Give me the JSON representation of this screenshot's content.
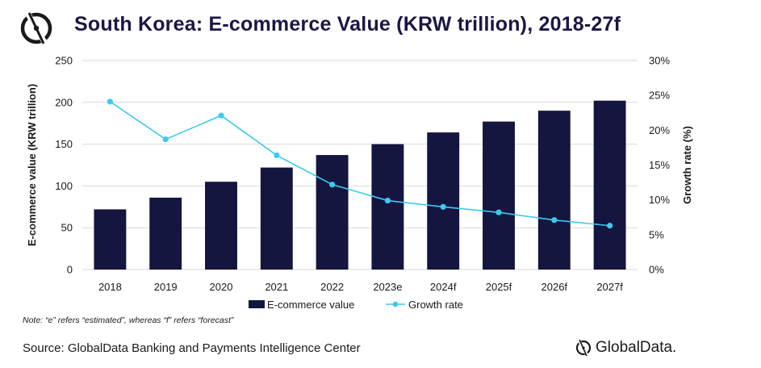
{
  "header": {
    "title": "South Korea: E-commerce Value (KRW trillion), 2018-27f",
    "logo_icon": "globaldata-logo-icon"
  },
  "colors": {
    "bar": "#14163f",
    "line": "#3ec9f0",
    "grid": "#d9d9d9",
    "title": "#1b1744"
  },
  "chart_data": {
    "type": "bar",
    "categories": [
      "2018",
      "2019",
      "2020",
      "2021",
      "2022",
      "2023e",
      "2024f",
      "2025f",
      "2026f",
      "2027f"
    ],
    "series": [
      {
        "name": "E-commerce value",
        "type": "bar",
        "axis": "left",
        "values": [
          72,
          86,
          105,
          122,
          137,
          150,
          164,
          177,
          190,
          202
        ]
      },
      {
        "name": "Growth rate",
        "type": "line",
        "axis": "right",
        "values": [
          24.1,
          18.7,
          22.1,
          16.4,
          12.2,
          9.9,
          9.0,
          8.2,
          7.1,
          6.3
        ]
      }
    ],
    "ylabel": "E-commerce value (KRW trillion)",
    "ylim": [
      0,
      250
    ],
    "yticks": [
      "0",
      "50",
      "100",
      "150",
      "200",
      "250"
    ],
    "y2label": "Growth rate (%)",
    "y2lim": [
      0,
      30
    ],
    "y2ticks": [
      "0%",
      "5%",
      "10%",
      "15%",
      "20%",
      "25%",
      "30%"
    ],
    "grid": true,
    "legend_position": "bottom"
  },
  "footer": {
    "note": "Note: “e” refers “estimated”, whereas “f” refers “forecast”",
    "source": "Source: GlobalData Banking and Payments Intelligence Center",
    "brand": "GlobalData."
  }
}
